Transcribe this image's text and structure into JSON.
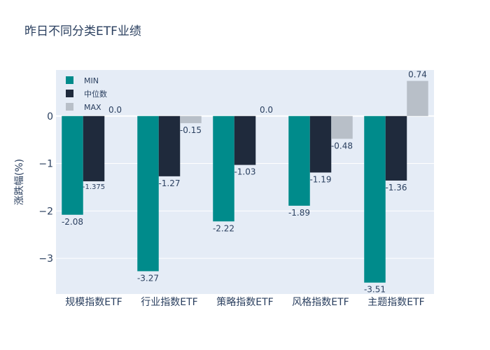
{
  "chart_data": {
    "type": "bar",
    "title": "昨日不同分类ETF业绩",
    "ylabel": "涨跌幅(%)",
    "xlabel": "",
    "categories": [
      "规模指数ETF",
      "行业指数ETF",
      "策略指数ETF",
      "风格指数ETF",
      "主题指数ETF"
    ],
    "series": [
      {
        "name": "MIN",
        "color": "#008b8b",
        "values": [
          -2.08,
          -3.27,
          -2.22,
          -1.89,
          -3.51
        ],
        "labels": [
          "-2.08",
          "-3.27",
          "-2.22",
          "-1.89",
          "-3.51"
        ]
      },
      {
        "name": "中位数",
        "color": "#1f2a3c",
        "values": [
          -1.375,
          -1.27,
          -1.03,
          -1.19,
          -1.36
        ],
        "labels": [
          "-1.375",
          "-1.27",
          "-1.03",
          "-1.19",
          "-1.36"
        ]
      },
      {
        "name": "MAX",
        "color": "#b8bfc8",
        "values": [
          0.0,
          -0.15,
          0.0,
          -0.48,
          0.74
        ],
        "labels": [
          "0.0",
          "-0.15",
          "0.0",
          "-0.48",
          "0.74"
        ]
      }
    ],
    "ylim": [
      -3.75,
      0.97
    ],
    "yticks": [
      0,
      -1,
      -2,
      -3
    ],
    "ytick_labels": [
      "0",
      "−1",
      "−2",
      "−3"
    ],
    "legend_position": "top-left",
    "grid": true,
    "plot_bg": "#e5ecf6"
  }
}
